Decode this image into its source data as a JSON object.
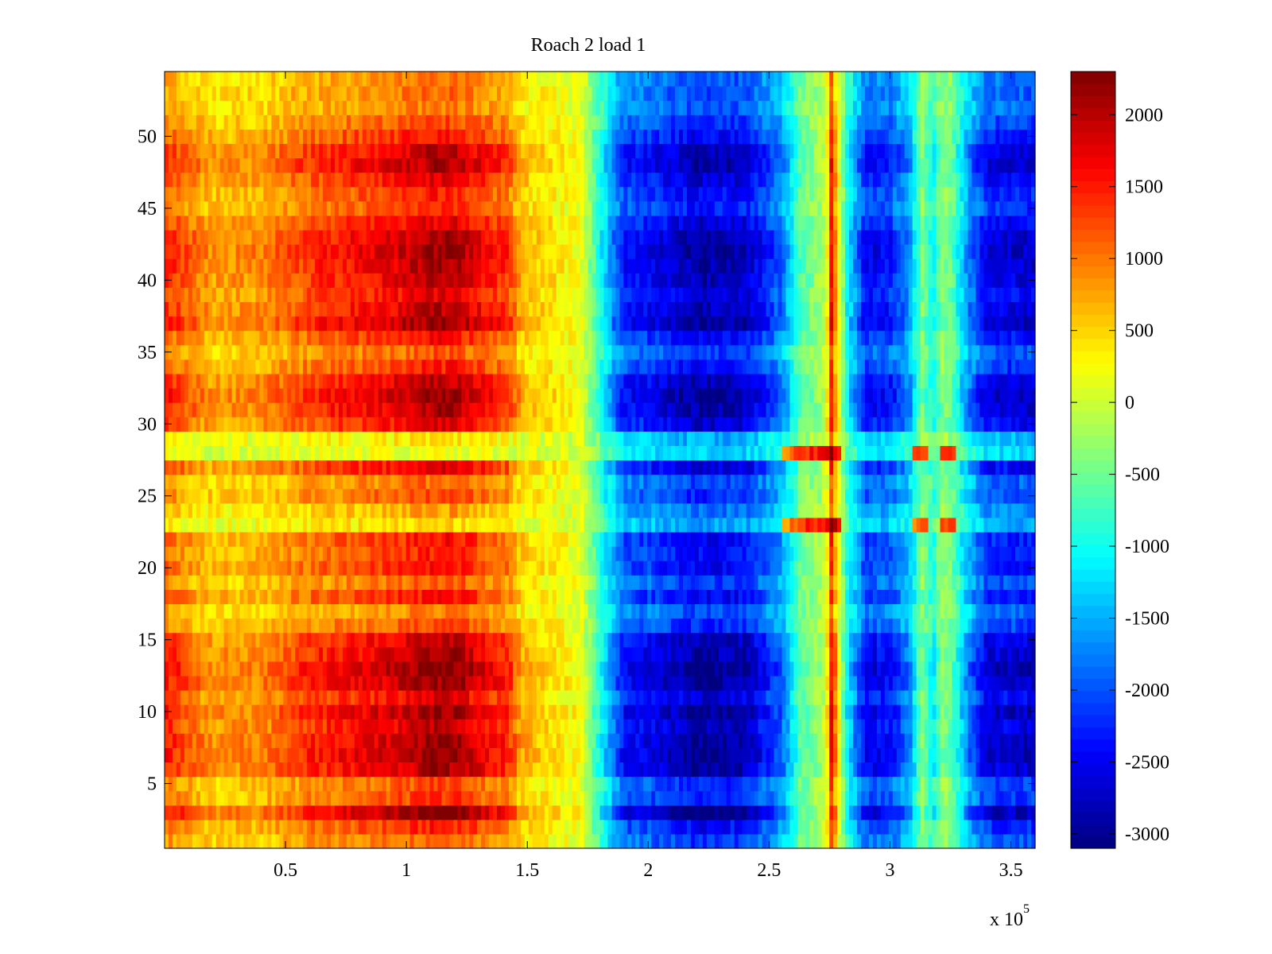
{
  "chart_data": {
    "type": "heatmap",
    "title": "Roach 2 load 1",
    "xlabel": "",
    "ylabel": "",
    "x_multiplier_label": {
      "base": "x 10",
      "exponent": "5"
    },
    "xlim": [
      0,
      3.6
    ],
    "ylim": [
      0.5,
      54.5
    ],
    "x_ticks": [
      0.5,
      1,
      1.5,
      2,
      2.5,
      3,
      3.5
    ],
    "x_tick_labels": [
      "0.5",
      "1",
      "1.5",
      "2",
      "2.5",
      "3",
      "3.5"
    ],
    "y_ticks": [
      5,
      10,
      15,
      20,
      25,
      30,
      35,
      40,
      45,
      50
    ],
    "y_tick_labels": [
      "5",
      "10",
      "15",
      "20",
      "25",
      "30",
      "35",
      "40",
      "45",
      "50"
    ],
    "colormap": "jet",
    "clim": [
      -3100,
      2300
    ],
    "colorbar_ticks": [
      2000,
      1500,
      1000,
      500,
      0,
      -500,
      -1000,
      -1500,
      -2000,
      -2500,
      -3000
    ],
    "colorbar_tick_labels": [
      "2000",
      "1500",
      "1000",
      "500",
      "0",
      "-500",
      "-1000",
      "-1500",
      "-2000",
      "-2500",
      "-3000"
    ],
    "rows": 54,
    "x_profile": {
      "x": [
        0,
        0.2,
        0.4,
        0.6,
        0.8,
        1.0,
        1.1,
        1.2,
        1.3,
        1.42,
        1.48,
        1.6,
        1.72,
        1.82,
        1.9,
        2.0,
        2.2,
        2.4,
        2.55,
        2.63,
        2.72,
        2.77,
        2.82,
        2.9,
        3.0,
        3.08,
        3.13,
        3.18,
        3.22,
        3.26,
        3.32,
        3.4,
        3.6
      ],
      "values": [
        1300,
        700,
        800,
        1200,
        1400,
        1600,
        1800,
        1800,
        1500,
        1200,
        600,
        400,
        200,
        -1200,
        -2200,
        -2300,
        -2700,
        -2600,
        -1800,
        -600,
        -200,
        1000,
        -1000,
        -2300,
        -2200,
        -1600,
        -400,
        -1000,
        -300,
        -600,
        -1600,
        -2400,
        -2500
      ]
    },
    "row_profile_rows": [
      1,
      2,
      3,
      4,
      5,
      6,
      7,
      8,
      9,
      10,
      11,
      12,
      13,
      14,
      15,
      16,
      17,
      18,
      19,
      20,
      21,
      22,
      23,
      24,
      25,
      26,
      27,
      28,
      29,
      30,
      31,
      32,
      33,
      34,
      35,
      36,
      37,
      38,
      39,
      40,
      41,
      42,
      43,
      44,
      45,
      46,
      47,
      48,
      49,
      50,
      51,
      52,
      53,
      54
    ],
    "row_profile_values": [
      0.2,
      0.5,
      1.3,
      0.4,
      0.3,
      1.1,
      1.2,
      1.2,
      1.0,
      1.2,
      0.8,
      1.2,
      1.3,
      1.1,
      1.0,
      0.3,
      0.0,
      0.6,
      0.2,
      0.6,
      0.5,
      0.6,
      -0.5,
      -0.2,
      0.3,
      0.1,
      0.8,
      -0.8,
      -0.6,
      0.8,
      1.1,
      1.2,
      1.0,
      0.5,
      0.2,
      0.6,
      1.2,
      1.0,
      0.8,
      1.0,
      1.1,
      1.2,
      1.1,
      0.8,
      0.4,
      0.5,
      0.8,
      1.1,
      1.0,
      0.6,
      0.3,
      0.0,
      0.1,
      0.0
    ],
    "hot_rows": [
      23,
      28
    ],
    "narrow_peak_x": 2.76,
    "side_peaks_x": [
      3.13,
      3.24
    ]
  }
}
